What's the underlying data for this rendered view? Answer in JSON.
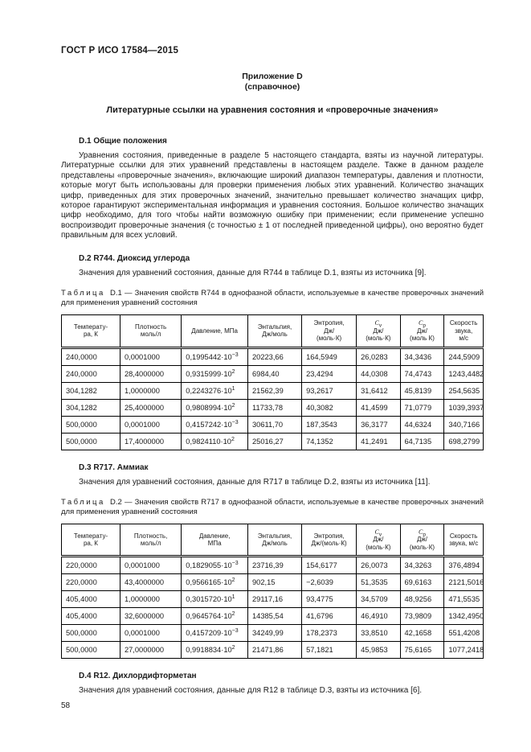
{
  "page": {
    "doc_header": "ГОСТ Р ИСО 17584—2015",
    "annex_line1": "Приложение D",
    "annex_line2": "(справочное)",
    "main_title": "Литературные ссылки на уравнения состояния и «проверочные значения»",
    "page_number": "58"
  },
  "sections": {
    "d1": {
      "heading": "D.1 Общие положения",
      "body": "Уравнения состояния, приведенные в разделе 5 настоящего стандарта, взяты из научной литературы. Литературные ссылки для этих уравнений представлены в настоящем разделе. Также в данном разделе представлены «проверочные значения», включающие широкий диапазон температуры, давления и плотности, которые могут быть использованы для проверки применения любых этих уравнений. Количество значащих цифр, приведенных для этих проверочных значений, значительно превышает количество значащих цифр, которое гарантируют экспериментальная информация и уравнения состояния. Большое количество значащих цифр необходимо, для того чтобы найти возможную ошибку при применении; если применение успешно воспроизводит проверочные значения (с точностью ± 1 от последней приведенной цифры), оно вероятно будет правильным для всех условий."
    },
    "d2": {
      "heading": "D.2 R744. Диоксид углерода",
      "body": "Значения для уравнений состояния, данные для R744 в таблице D.1, взяты из источника [9]."
    },
    "d3": {
      "heading": "D.3 R717. Аммиак",
      "body": "Значения для уравнений состояния, данные для R717 в таблице D.2, взяты из источника [11]."
    },
    "d4": {
      "heading": "D.4 R12. Дихлордифторметан",
      "body": "Значения для уравнений состояния, данные для R12 в таблице D.3, взяты из источника [6]."
    }
  },
  "tables": [
    {
      "caption_word": "Таблица",
      "caption_id": "D.1",
      "caption_text": "— Значения свойств R744 в однофазной области, используемые в качестве проверочных значений для применения уравнений состояния",
      "headers": [
        "Температу-\nра, К",
        "Плотность\nмоль/л",
        "Давление, МПа",
        "Энтальпия,\nДж/моль",
        "Энтропия,\nДж/\n(моль·К)",
        "*C*~v~\nДж/\n(моль·К)",
        "*C*~p~\nДж/\n(моль К)",
        "Скорость\nзвука,\nм/с"
      ],
      "rows": [
        [
          "240,0000",
          "0,0001000",
          "0,1995442·10^−3^",
          "20223,66",
          "164,5949",
          "26,0283",
          "34,3436",
          "244,5909"
        ],
        [
          "240,0000",
          "28,4000000",
          "0,9315999·10^2^",
          "6984,40",
          "23,4294",
          "44,0308",
          "74,4743",
          "1243,4482"
        ],
        [
          "304,1282",
          "1,0000000",
          "0,2243276·10^1^",
          "21562,39",
          "93,2617",
          "31,6412",
          "45,8139",
          "254,5635"
        ],
        [
          "304,1282",
          "25,4000000",
          "0,9808994·10^2^",
          "11733,78",
          "40,3082",
          "41,4599",
          "71,0779",
          "1039,3937"
        ],
        [
          "500,0000",
          "0,0001000",
          "0,4157242·10^−3^",
          "30611,70",
          "187,3543",
          "36,3177",
          "44,6324",
          "340,7166"
        ],
        [
          "500,0000",
          "17,4000000",
          "0,9824110·10^2^",
          "25016,27",
          "74,1352",
          "41,2491",
          "64,7135",
          "698,2799"
        ]
      ]
    },
    {
      "caption_word": "Таблица",
      "caption_id": "D.2",
      "caption_text": "— Значения свойств R717 в однофазной области, используемые в качестве проверочных значений для применения уравнений состояния",
      "headers": [
        "Температу-\nра, К",
        "Плотность,\nмоль/л",
        "Давление,\nМПа",
        "Энтальпия,\nДж/моль",
        "Энтропия,\nДж/(моль·К)",
        "*C*~v~\nДж/\n(моль·К)",
        "*C*~p~\nДж/\n(моль·К)",
        "Скорость\nзвука, м/с"
      ],
      "rows": [
        [
          "220,0000",
          "0,0001000",
          "0,1829055·10^−3^",
          "23716,39",
          "154,6177",
          "26,0073",
          "34,3263",
          "376,4894"
        ],
        [
          "220,0000",
          "43,4000000",
          "0,9566165·10^2^",
          "902,15",
          "−2,6039",
          "51,3535",
          "69,6163",
          "2121,5016"
        ],
        [
          "405,4000",
          "1,0000000",
          "0,3015720·10^1^",
          "29117,16",
          "93,4775",
          "34,5709",
          "48,9256",
          "471,5535"
        ],
        [
          "405,4000",
          "32,6000000",
          "0,9645764·10^2^",
          "14385,54",
          "41,6796",
          "46,4910",
          "73,9809",
          "1342,4950"
        ],
        [
          "500,0000",
          "0,0001000",
          "0,4157209·10^−3^",
          "34249,99",
          "178,2373",
          "33,8510",
          "42,1658",
          "551,4208"
        ],
        [
          "500,0000",
          "27,0000000",
          "0,9918834·10^2^",
          "21471,86",
          "57,1821",
          "45,9853",
          "75,6165",
          "1077,2418"
        ]
      ]
    }
  ]
}
